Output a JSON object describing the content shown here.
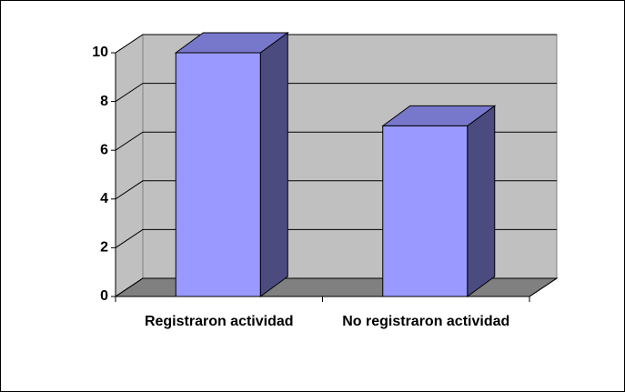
{
  "chart_data": {
    "type": "bar3d",
    "categories": [
      "Registraron actividad",
      "No registraron actividad"
    ],
    "values": [
      10,
      7
    ],
    "color": "#9999ff",
    "ylim": [
      0,
      10
    ],
    "yticks": [
      0,
      2,
      4,
      6,
      8,
      10
    ],
    "grid": true
  }
}
